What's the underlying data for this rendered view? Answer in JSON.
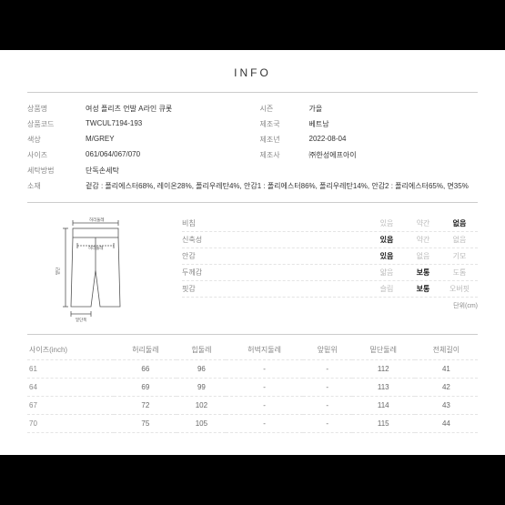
{
  "title": "INFO",
  "spec_left": [
    {
      "label": "상품명",
      "value": "여성 플리츠 언발 A라인 큐롯"
    },
    {
      "label": "상품코드",
      "value": "TWCUL7194-193"
    },
    {
      "label": "색상",
      "value": "M/GREY"
    },
    {
      "label": "사이즈",
      "value": "061/064/067/070"
    },
    {
      "label": "세탁방법",
      "value": "단독손세탁"
    }
  ],
  "spec_right": [
    {
      "label": "시즌",
      "value": "가을"
    },
    {
      "label": "제조국",
      "value": "베트남"
    },
    {
      "label": "제조년",
      "value": "2022-08-04"
    },
    {
      "label": "제조사",
      "value": "㈜한성에프아이"
    }
  ],
  "material": {
    "label": "소재",
    "value": "겉감 : 폴리에스터68%, 레이온28%, 폴리우레탄4%, 안감1 : 폴리에스터86%, 폴리우레탄14%, 안감2 : 폴리에스터65%, 면35%"
  },
  "diagram_labels": {
    "waist": "허리둘레",
    "waistbelow": "허리둘레",
    "hip": "밑단",
    "bottom": "밑단폭"
  },
  "attributes": [
    {
      "label": "비침",
      "opts": [
        "있음",
        "약간",
        "없음"
      ],
      "selected": 2
    },
    {
      "label": "신축성",
      "opts": [
        "있음",
        "약간",
        "없음"
      ],
      "selected": 0
    },
    {
      "label": "안감",
      "opts": [
        "있음",
        "없음",
        "기모"
      ],
      "selected": 0
    },
    {
      "label": "두께감",
      "opts": [
        "얇음",
        "보통",
        "도톰"
      ],
      "selected": 1
    },
    {
      "label": "핏감",
      "opts": [
        "슬림",
        "보통",
        "오버핏"
      ],
      "selected": 1
    }
  ],
  "unit": "단위(cm)",
  "size_table": {
    "headers": [
      "사이즈(inch)",
      "허리둘레",
      "힙둘레",
      "허벅지둘레",
      "앞밑위",
      "밑단둘레",
      "전체길이"
    ],
    "rows": [
      [
        "61",
        "66",
        "96",
        "-",
        "-",
        "112",
        "41"
      ],
      [
        "64",
        "69",
        "99",
        "-",
        "-",
        "113",
        "42"
      ],
      [
        "67",
        "72",
        "102",
        "-",
        "-",
        "114",
        "43"
      ],
      [
        "70",
        "75",
        "105",
        "-",
        "-",
        "115",
        "44"
      ]
    ]
  }
}
